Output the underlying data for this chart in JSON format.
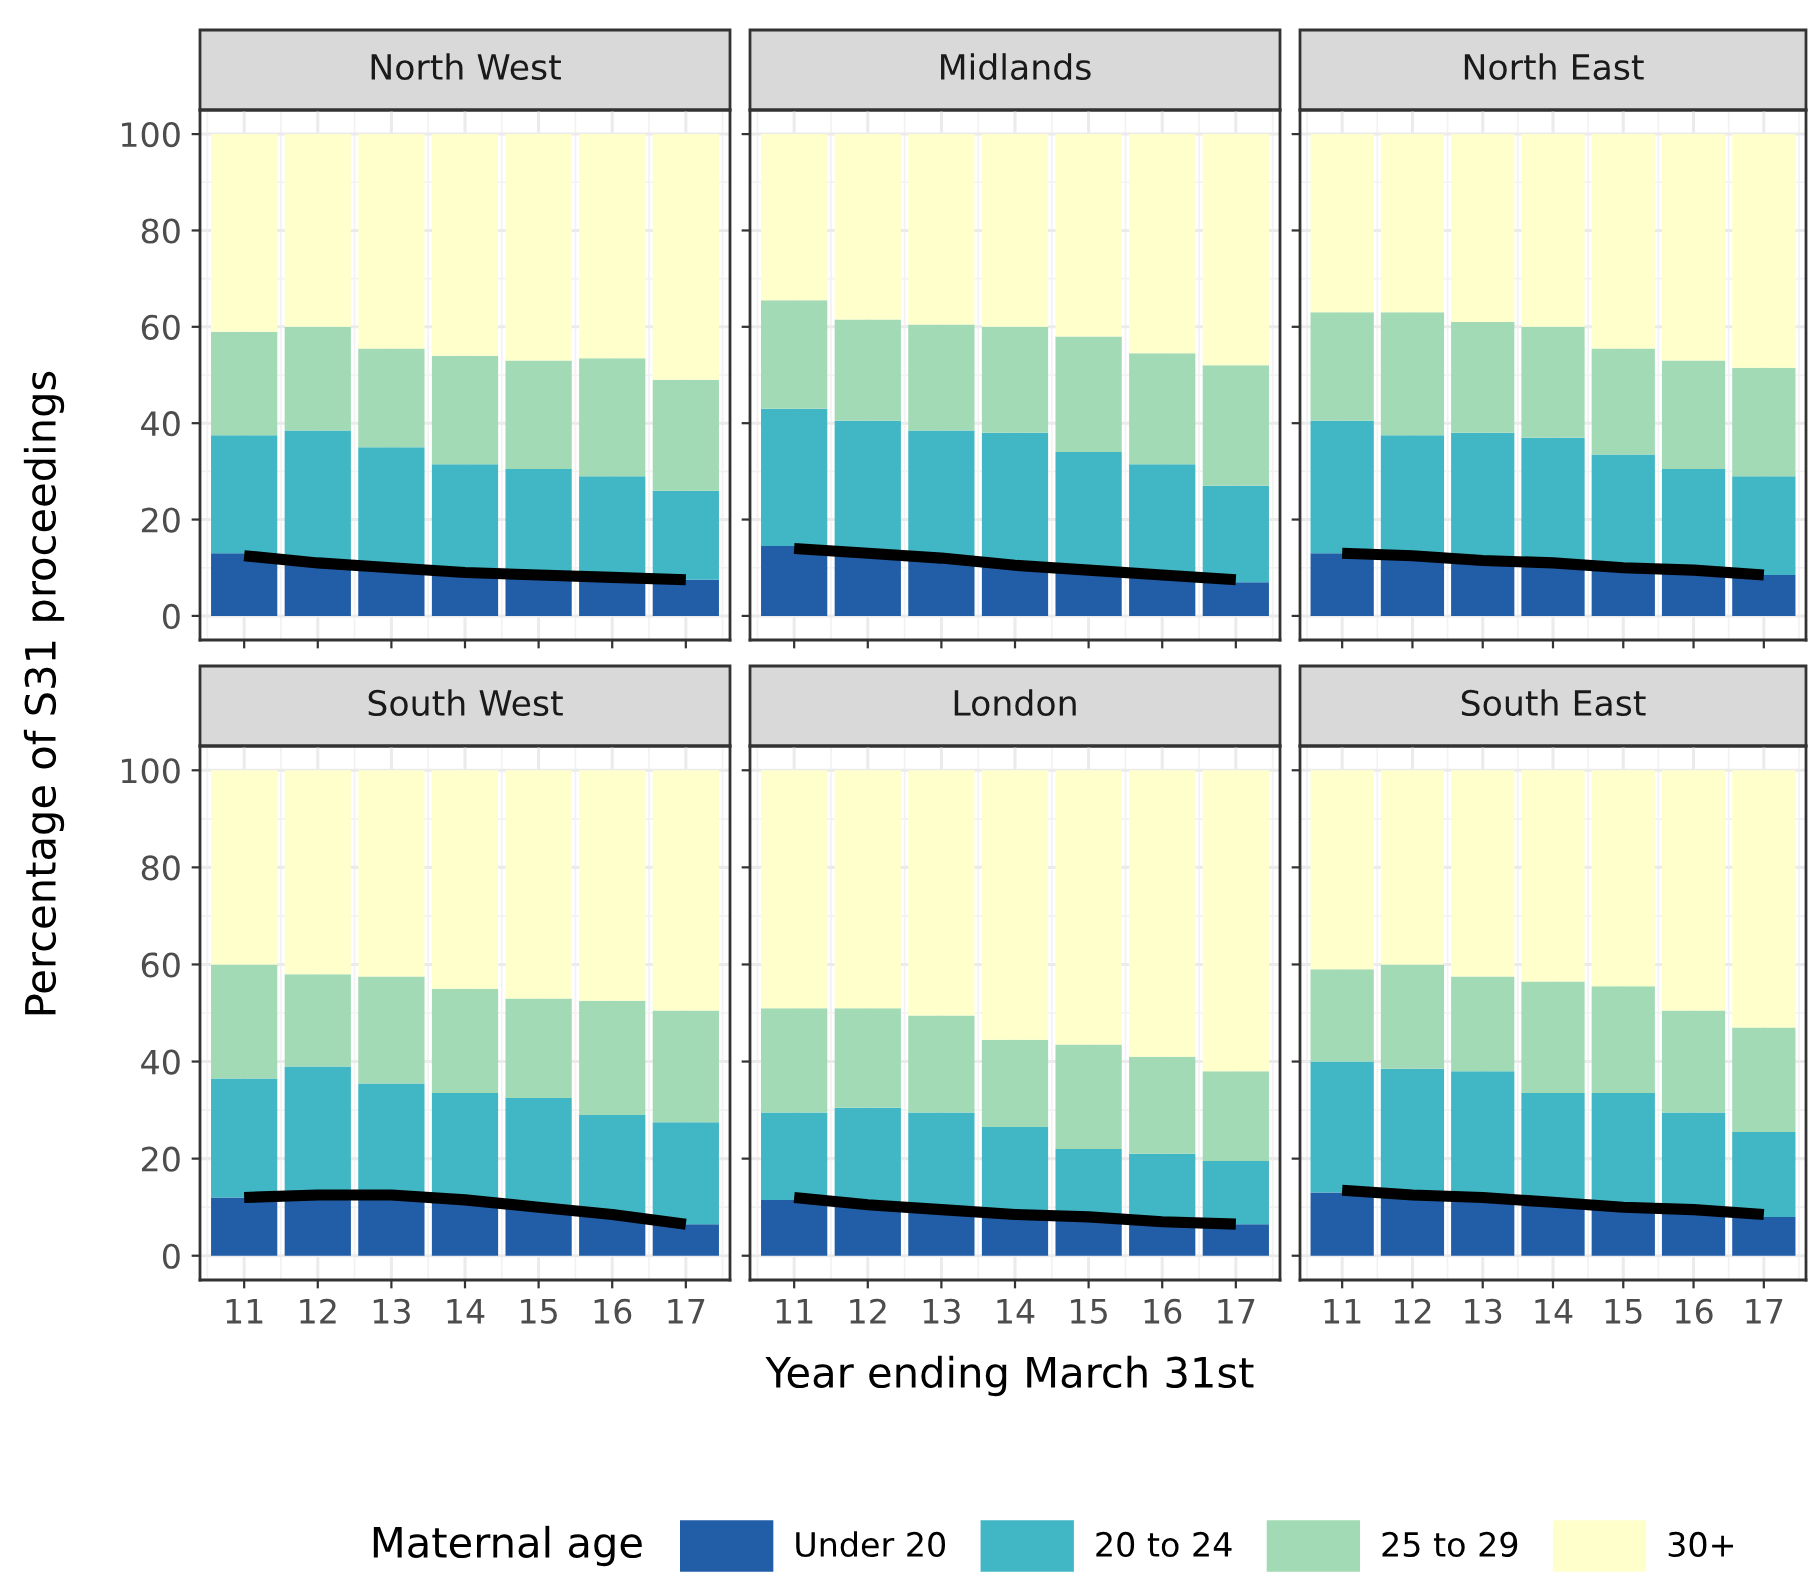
{
  "chart_data": [
    {
      "type": "bar",
      "title": "North West",
      "ylabel": "Percentage of S31 proceedings",
      "legend_title": "Maternal age",
      "legend": "bottom",
      "stacked": true,
      "grid": true,
      "tick_labels": "y",
      "categories": [
        "11",
        "12",
        "13",
        "14",
        "15",
        "16",
        "17"
      ],
      "ylim": [
        -5,
        105
      ],
      "yticks": [
        0,
        20,
        40,
        60,
        80,
        100
      ],
      "series": [
        {
          "name": "Under 20",
          "color": "#225ea8",
          "values": [
            13,
            11,
            10,
            9,
            8.5,
            8,
            7.5
          ]
        },
        {
          "name": "20 to 24",
          "color": "#41b6c4",
          "values": [
            24.5,
            27.5,
            25,
            22.5,
            22,
            21,
            18.5
          ]
        },
        {
          "name": "25 to 29",
          "color": "#a1dab4",
          "values": [
            21.5,
            21.5,
            20.5,
            22.5,
            22.5,
            24.5,
            23
          ]
        },
        {
          "name": "30+",
          "color": "#ffffcc",
          "values": [
            41,
            40,
            44.5,
            46,
            47,
            46.5,
            51
          ]
        },
        {
          "type": "line",
          "color": "#000000",
          "values": [
            12.5,
            11,
            10,
            9,
            8.5,
            8,
            7.5
          ]
        }
      ]
    },
    {
      "type": "bar",
      "title": "Midlands",
      "stacked": true,
      "grid": true,
      "tick_labels": false,
      "categories": [
        "11",
        "12",
        "13",
        "14",
        "15",
        "16",
        "17"
      ],
      "ylim": [
        -5,
        105
      ],
      "yticks": [
        0,
        20,
        40,
        60,
        80,
        100
      ],
      "series": [
        {
          "color": "#225ea8",
          "values": [
            14.5,
            13,
            12,
            11,
            10,
            9,
            7
          ]
        },
        {
          "color": "#41b6c4",
          "values": [
            28.5,
            27.5,
            26.5,
            27,
            24,
            22.5,
            20
          ]
        },
        {
          "color": "#a1dab4",
          "values": [
            22.5,
            21,
            22,
            22,
            24,
            23,
            25
          ]
        },
        {
          "color": "#ffffcc",
          "values": [
            34.5,
            38.5,
            39.5,
            40,
            42,
            45.5,
            48
          ]
        },
        {
          "type": "line",
          "color": "#000000",
          "values": [
            14,
            13,
            12,
            10.5,
            9.5,
            8.5,
            7.5
          ]
        }
      ]
    },
    {
      "type": "bar",
      "title": "North East",
      "stacked": true,
      "grid": true,
      "tick_labels": false,
      "categories": [
        "11",
        "12",
        "13",
        "14",
        "15",
        "16",
        "17"
      ],
      "ylim": [
        -5,
        105
      ],
      "yticks": [
        0,
        20,
        40,
        60,
        80,
        100
      ],
      "series": [
        {
          "color": "#225ea8",
          "values": [
            13,
            12,
            11.5,
            11,
            10,
            9,
            8.5
          ]
        },
        {
          "color": "#41b6c4",
          "values": [
            27.5,
            25.5,
            26.5,
            26,
            23.5,
            21.5,
            20.5
          ]
        },
        {
          "color": "#a1dab4",
          "values": [
            22.5,
            25.5,
            23,
            23,
            22,
            22.5,
            22.5
          ]
        },
        {
          "color": "#ffffcc",
          "values": [
            37,
            37,
            39,
            40,
            44.5,
            47,
            48.5
          ]
        },
        {
          "type": "line",
          "color": "#000000",
          "values": [
            13,
            12.5,
            11.5,
            11,
            10,
            9.5,
            8.5
          ]
        }
      ]
    },
    {
      "type": "bar",
      "title": "South West",
      "stacked": true,
      "grid": true,
      "categories": [
        "11",
        "12",
        "13",
        "14",
        "15",
        "16",
        "17"
      ],
      "ylim": [
        -5,
        105
      ],
      "yticks": [
        0,
        20,
        40,
        60,
        80,
        100
      ],
      "series": [
        {
          "color": "#225ea8",
          "values": [
            12,
            12,
            12,
            11,
            10,
            8.5,
            6.5
          ]
        },
        {
          "color": "#41b6c4",
          "values": [
            24.5,
            27,
            23.5,
            22.5,
            22.5,
            20.5,
            21
          ]
        },
        {
          "color": "#a1dab4",
          "values": [
            23.5,
            19,
            22,
            21.5,
            20.5,
            23.5,
            23
          ]
        },
        {
          "color": "#ffffcc",
          "values": [
            40,
            42,
            42.5,
            45,
            47,
            47.5,
            49.5
          ]
        },
        {
          "type": "line",
          "color": "#000000",
          "values": [
            12,
            12.5,
            12.5,
            11.5,
            10,
            8.5,
            6.5
          ]
        }
      ]
    },
    {
      "type": "bar",
      "title": "London",
      "xlabel": "Year ending March 31st",
      "stacked": true,
      "grid": true,
      "tick_labels": "x",
      "categories": [
        "11",
        "12",
        "13",
        "14",
        "15",
        "16",
        "17"
      ],
      "ylim": [
        -5,
        105
      ],
      "yticks": [
        0,
        20,
        40,
        60,
        80,
        100
      ],
      "series": [
        {
          "color": "#225ea8",
          "values": [
            11.5,
            10.5,
            9.5,
            9,
            8,
            7.5,
            6.5
          ]
        },
        {
          "color": "#41b6c4",
          "values": [
            18,
            20,
            20,
            17.5,
            14,
            13.5,
            13
          ]
        },
        {
          "color": "#a1dab4",
          "values": [
            21.5,
            20.5,
            20,
            18,
            21.5,
            20,
            18.5
          ]
        },
        {
          "color": "#ffffcc",
          "values": [
            49,
            49,
            50.5,
            55.5,
            56.5,
            59,
            62
          ]
        },
        {
          "type": "line",
          "color": "#000000",
          "values": [
            12,
            10.5,
            9.5,
            8.5,
            8,
            7,
            6.5
          ]
        }
      ]
    },
    {
      "type": "bar",
      "title": "South East",
      "stacked": true,
      "grid": true,
      "tick_labels": "x",
      "categories": [
        "11",
        "12",
        "13",
        "14",
        "15",
        "16",
        "17"
      ],
      "ylim": [
        -5,
        105
      ],
      "yticks": [
        0,
        20,
        40,
        60,
        80,
        100
      ],
      "series": [
        {
          "color": "#225ea8",
          "values": [
            13,
            12.5,
            12,
            11,
            10,
            9,
            8
          ]
        },
        {
          "color": "#41b6c4",
          "values": [
            27,
            26,
            26,
            22.5,
            23.5,
            20.5,
            17.5
          ]
        },
        {
          "color": "#a1dab4",
          "values": [
            19,
            21.5,
            19.5,
            23,
            22,
            21,
            21.5
          ]
        },
        {
          "color": "#ffffcc",
          "values": [
            41,
            40,
            42.5,
            43.5,
            44.5,
            49.5,
            53
          ]
        },
        {
          "type": "line",
          "color": "#000000",
          "values": [
            13.5,
            12.5,
            12,
            11,
            10,
            9.5,
            8.5
          ]
        }
      ]
    }
  ]
}
